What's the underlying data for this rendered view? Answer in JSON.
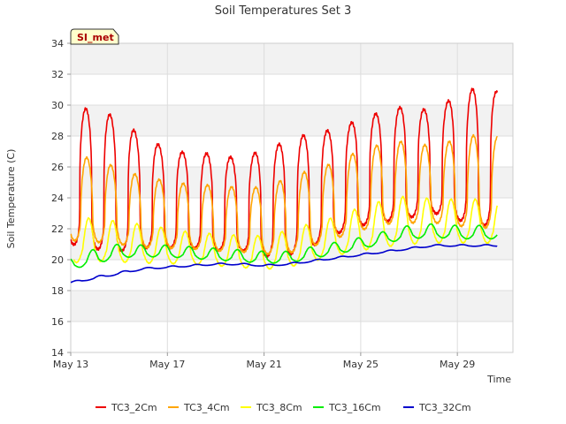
{
  "chart_data": {
    "type": "line",
    "title": "Soil Temperatures Set 3",
    "xlabel": "Time",
    "ylabel": "Soil Temperature (C)",
    "badge": "SI_met",
    "xlim": [
      0,
      18.3
    ],
    "ylim": [
      14,
      34
    ],
    "x_ticks": [
      {
        "day": 0,
        "label": "May 13"
      },
      {
        "day": 4,
        "label": "May 17"
      },
      {
        "day": 8,
        "label": "May 21"
      },
      {
        "day": 12,
        "label": "May 25"
      },
      {
        "day": 16,
        "label": "May 29"
      }
    ],
    "y_ticks": [
      14,
      16,
      18,
      20,
      22,
      24,
      26,
      28,
      30,
      32,
      34
    ],
    "grid": true,
    "legend_position": "bottom",
    "days": [
      0,
      1,
      2,
      3,
      4,
      5,
      6,
      7,
      8,
      9,
      10,
      11,
      12,
      13,
      14,
      15,
      16,
      17,
      18
    ],
    "series": [
      {
        "name": "TC3_2Cm",
        "color": "#ee0000",
        "phase": 0.62,
        "sharp": 3,
        "mean": [
          23.5,
          23.3,
          23.0,
          22.8,
          22.6,
          22.5,
          22.4,
          22.3,
          22.2,
          22.4,
          23.0,
          23.6,
          24.2,
          24.5,
          24.8,
          24.9,
          24.9,
          24.8,
          24.6
        ],
        "amp": [
          8.0,
          8.4,
          7.9,
          6.6,
          5.9,
          5.6,
          5.8,
          5.4,
          6.4,
          6.8,
          6.8,
          6.2,
          6.4,
          6.6,
          6.7,
          6.0,
          7.5,
          8.3,
          7.8
        ]
      },
      {
        "name": "TC3_4Cm",
        "color": "#ffa500",
        "phase": 0.66,
        "sharp": 2,
        "mean": [
          22.8,
          22.7,
          22.4,
          22.1,
          22.0,
          21.9,
          21.8,
          21.7,
          21.6,
          21.8,
          22.3,
          22.8,
          23.4,
          23.8,
          23.9,
          23.8,
          23.8,
          23.8,
          23.7
        ],
        "amp": [
          5.0,
          5.0,
          4.5,
          4.2,
          4.0,
          3.8,
          3.9,
          3.8,
          4.0,
          4.5,
          4.6,
          4.5,
          4.8,
          4.8,
          4.9,
          4.5,
          5.2,
          5.6,
          5.3
        ]
      },
      {
        "name": "TC3_8Cm",
        "color": "#ffff00",
        "phase": 0.74,
        "sharp": 1,
        "mean": [
          20.6,
          20.7,
          20.6,
          20.5,
          20.4,
          20.3,
          20.2,
          20.1,
          20.0,
          20.2,
          20.6,
          21.0,
          21.4,
          21.7,
          21.9,
          21.9,
          21.9,
          21.9,
          21.8
        ],
        "amp": [
          2.6,
          2.6,
          2.4,
          2.3,
          2.1,
          1.9,
          1.9,
          1.9,
          2.0,
          2.2,
          2.3,
          2.3,
          2.6,
          2.8,
          2.9,
          2.6,
          2.6,
          2.6,
          2.5
        ],
        "start": 0.12
      },
      {
        "name": "TC3_16Cm",
        "color": "#00ee00",
        "phase": 0.9,
        "sharp": 1,
        "mean": [
          19.6,
          20.0,
          20.4,
          20.4,
          20.4,
          20.3,
          20.2,
          20.1,
          20.0,
          20.0,
          20.3,
          20.6,
          20.9,
          21.3,
          21.6,
          21.7,
          21.6,
          21.6,
          21.6
        ],
        "amp": [
          0.7,
          0.9,
          0.8,
          0.7,
          0.7,
          0.7,
          0.7,
          0.7,
          0.7,
          0.7,
          0.7,
          0.7,
          0.7,
          0.7,
          0.8,
          0.8,
          0.8,
          0.8,
          0.8
        ]
      },
      {
        "name": "TC3_32Cm",
        "color": "#0000cc",
        "phase": 0.2,
        "sharp": 1,
        "mean": [
          18.5,
          18.8,
          19.1,
          19.4,
          19.5,
          19.6,
          19.7,
          19.7,
          19.6,
          19.7,
          19.9,
          20.1,
          20.3,
          20.5,
          20.7,
          20.9,
          20.9,
          20.9,
          20.9
        ],
        "amp": [
          0.1,
          0.15,
          0.15,
          0.1,
          0.1,
          0.1,
          0.1,
          0.1,
          0.1,
          0.1,
          0.1,
          0.1,
          0.1,
          0.1,
          0.1,
          0.1,
          0.1,
          0.1,
          0.1
        ]
      }
    ]
  }
}
